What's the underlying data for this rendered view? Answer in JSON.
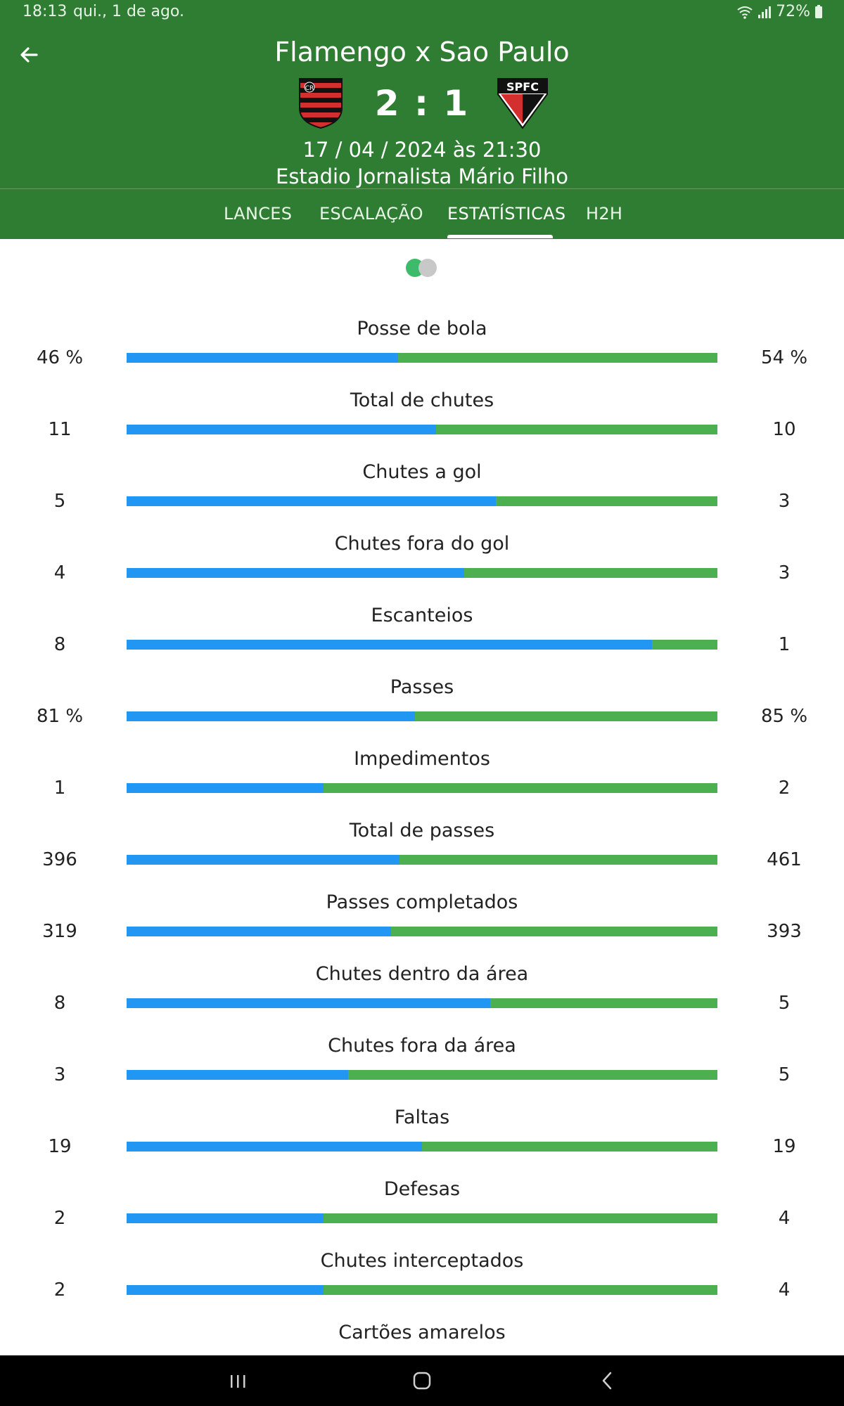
{
  "status_bar": {
    "time": "18:13",
    "date": "qui., 1 de ago.",
    "battery": "72%",
    "icons": [
      "wifi-icon",
      "signal-icon",
      "battery-icon"
    ]
  },
  "header": {
    "title": "Flamengo x Sao Paulo",
    "score": "2 : 1",
    "datetime": "17 / 04 / 2024 às 21:30",
    "venue": "Estadio Jornalista Mário Filho",
    "home_crest_icon": "flamengo-crest-icon",
    "away_crest_icon": "spfc-crest-icon",
    "away_crest_text": "SPFC"
  },
  "tabs": [
    {
      "label": "LANCES",
      "active": false
    },
    {
      "label": "ESCALAÇÃO",
      "active": false
    },
    {
      "label": "ESTATÍSTICAS",
      "active": true
    },
    {
      "label": "H2H",
      "active": false
    }
  ],
  "colors": {
    "header_green": "#2f7d32",
    "home_bar": "#2196f3",
    "away_bar": "#4caf50",
    "toggle_on": "#3dba6a"
  },
  "stats": [
    {
      "label": "Posse de bola",
      "home": "46 %",
      "away": "54 %",
      "home_share": 0.46
    },
    {
      "label": "Total de chutes",
      "home": "11",
      "away": "10",
      "home_share": 0.524
    },
    {
      "label": "Chutes a gol",
      "home": "5",
      "away": "3",
      "home_share": 0.625
    },
    {
      "label": "Chutes fora do gol",
      "home": "4",
      "away": "3",
      "home_share": 0.571
    },
    {
      "label": "Escanteios",
      "home": "8",
      "away": "1",
      "home_share": 0.889
    },
    {
      "label": "Passes",
      "home": "81 %",
      "away": "85 %",
      "home_share": 0.488
    },
    {
      "label": "Impedimentos",
      "home": "1",
      "away": "2",
      "home_share": 0.333
    },
    {
      "label": "Total de passes",
      "home": "396",
      "away": "461",
      "home_share": 0.462
    },
    {
      "label": "Passes completados",
      "home": "319",
      "away": "393",
      "home_share": 0.448
    },
    {
      "label": "Chutes dentro da área",
      "home": "8",
      "away": "5",
      "home_share": 0.615
    },
    {
      "label": "Chutes fora da área",
      "home": "3",
      "away": "5",
      "home_share": 0.375
    },
    {
      "label": "Faltas",
      "home": "19",
      "away": "19",
      "home_share": 0.5
    },
    {
      "label": "Defesas",
      "home": "2",
      "away": "4",
      "home_share": 0.333
    },
    {
      "label": "Chutes interceptados",
      "home": "2",
      "away": "4",
      "home_share": 0.333
    },
    {
      "label": "Cartões amarelos",
      "home": "",
      "away": "",
      "home_share": null
    }
  ],
  "nav": [
    "recent-apps-icon",
    "home-icon",
    "back-icon"
  ]
}
